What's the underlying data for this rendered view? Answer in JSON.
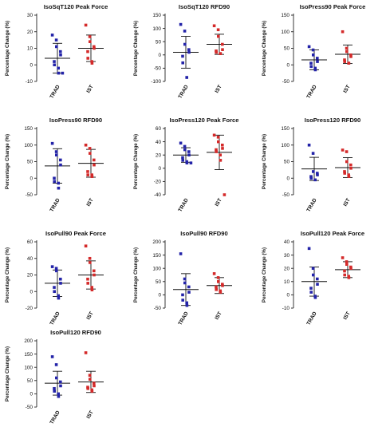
{
  "style": {
    "trad_color": "#2323a8",
    "ist_color": "#d42a2a",
    "axis_color": "#222222"
  },
  "chart_data": [
    {
      "type": "scatter",
      "title": "IsoSqT120 Peak Force",
      "ylabel": "Percentage Change (%)",
      "categories": [
        "TRAD",
        "IST"
      ],
      "ylim": [
        -10,
        30
      ],
      "yticks": [
        -10,
        0,
        10,
        20,
        30
      ],
      "series": [
        {
          "name": "TRAD",
          "values": [
            18,
            15,
            11,
            8,
            6,
            2,
            0,
            -2,
            -5,
            -5
          ],
          "mean": 4,
          "sd": 9
        },
        {
          "name": "IST",
          "values": [
            24,
            17,
            14,
            11,
            10,
            8,
            4,
            2,
            1
          ],
          "mean": 10,
          "sd": 8
        }
      ]
    },
    {
      "type": "scatter",
      "title": "IsoSqT120 RFD90",
      "ylabel": "Percentage Change (%)",
      "categories": [
        "TRAD",
        "IST"
      ],
      "ylim": [
        -100,
        150
      ],
      "yticks": [
        -100,
        -50,
        0,
        50,
        100,
        150
      ],
      "series": [
        {
          "name": "TRAD",
          "values": [
            115,
            90,
            40,
            20,
            10,
            -5,
            -30,
            -85
          ],
          "mean": 10,
          "sd": 60
        },
        {
          "name": "IST",
          "values": [
            110,
            95,
            70,
            40,
            20,
            15,
            10,
            5,
            5
          ],
          "mean": 40,
          "sd": 38
        }
      ]
    },
    {
      "type": "scatter",
      "title": "IsoPress90 Peak Force",
      "ylabel": "Percentage Change (%)",
      "categories": [
        "TRAD",
        "IST"
      ],
      "ylim": [
        -50,
        150
      ],
      "yticks": [
        -50,
        0,
        50,
        100,
        150
      ],
      "series": [
        {
          "name": "TRAD",
          "values": [
            55,
            45,
            30,
            20,
            10,
            5,
            -5,
            -10,
            -15
          ],
          "mean": 15,
          "sd": 30
        },
        {
          "name": "IST",
          "values": [
            100,
            50,
            40,
            30,
            25,
            15,
            10,
            5,
            5
          ],
          "mean": 32,
          "sd": 28
        }
      ]
    },
    {
      "type": "scatter",
      "title": "IsoPress90 RFD90",
      "ylabel": "Percentage Change (%)",
      "categories": [
        "TRAD",
        "IST"
      ],
      "ylim": [
        -50,
        150
      ],
      "yticks": [
        -50,
        0,
        50,
        100,
        150
      ],
      "series": [
        {
          "name": "TRAD",
          "values": [
            105,
            80,
            70,
            55,
            40,
            0,
            -10,
            -15,
            -30
          ],
          "mean": 37,
          "sd": 52
        },
        {
          "name": "IST",
          "values": [
            100,
            90,
            75,
            55,
            40,
            20,
            10,
            10,
            5
          ],
          "mean": 45,
          "sd": 42
        }
      ]
    },
    {
      "type": "scatter",
      "title": "IsoPress120 Peak Force",
      "ylabel": "Percentage Change (%)",
      "categories": [
        "TRAD",
        "IST"
      ],
      "ylim": [
        -40,
        60
      ],
      "yticks": [
        -40,
        -20,
        0,
        20,
        40,
        60
      ],
      "series": [
        {
          "name": "TRAD",
          "values": [
            38,
            33,
            28,
            25,
            20,
            16,
            12,
            10,
            8,
            8
          ],
          "mean": 20,
          "sd": 11
        },
        {
          "name": "IST",
          "values": [
            50,
            47,
            40,
            35,
            30,
            28,
            25,
            20,
            12,
            -40
          ],
          "mean": 24,
          "sd": 26
        }
      ]
    },
    {
      "type": "scatter",
      "title": "IsoPress120 RFD90",
      "ylabel": "Percentage Change (%)",
      "categories": [
        "TRAD",
        "IST"
      ],
      "ylim": [
        -50,
        150
      ],
      "yticks": [
        -50,
        0,
        50,
        100,
        150
      ],
      "series": [
        {
          "name": "TRAD",
          "values": [
            100,
            75,
            20,
            15,
            10,
            5,
            0,
            -5
          ],
          "mean": 28,
          "sd": 35
        },
        {
          "name": "IST",
          "values": [
            85,
            80,
            50,
            40,
            30,
            20,
            15,
            10,
            5
          ],
          "mean": 32,
          "sd": 30
        }
      ]
    },
    {
      "type": "scatter",
      "title": "IsoPull90 Peak Force",
      "ylabel": "Percentage Change (%)",
      "categories": [
        "TRAD",
        "IST"
      ],
      "ylim": [
        -20,
        60
      ],
      "yticks": [
        -20,
        0,
        20,
        40,
        60
      ],
      "series": [
        {
          "name": "TRAD",
          "values": [
            30,
            28,
            25,
            15,
            10,
            5,
            0,
            -5,
            -8
          ],
          "mean": 10,
          "sd": 16
        },
        {
          "name": "IST",
          "values": [
            55,
            40,
            35,
            25,
            20,
            15,
            10,
            5,
            2
          ],
          "mean": 20,
          "sd": 17
        }
      ]
    },
    {
      "type": "scatter",
      "title": "IsoPull90 RFD90",
      "ylabel": "Percentage Change (%)",
      "categories": [
        "TRAD",
        "IST"
      ],
      "ylim": [
        -50,
        200
      ],
      "yticks": [
        -50,
        0,
        50,
        100,
        150,
        200
      ],
      "series": [
        {
          "name": "TRAD",
          "values": [
            155,
            60,
            45,
            30,
            10,
            0,
            -20,
            -30,
            -40
          ],
          "mean": 20,
          "sd": 60
        },
        {
          "name": "IST",
          "values": [
            80,
            65,
            50,
            40,
            35,
            30,
            20,
            15,
            10
          ],
          "mean": 35,
          "sd": 30
        }
      ]
    },
    {
      "type": "scatter",
      "title": "IsoPull120 Peak Force",
      "ylabel": "Percentage Change (%)",
      "categories": [
        "TRAD",
        "IST"
      ],
      "ylim": [
        -10,
        40
      ],
      "yticks": [
        -10,
        0,
        10,
        20,
        30,
        40
      ],
      "series": [
        {
          "name": "TRAD",
          "values": [
            35,
            20,
            15,
            12,
            8,
            5,
            2,
            -1,
            -2
          ],
          "mean": 10,
          "sd": 11
        },
        {
          "name": "IST",
          "values": [
            28,
            25,
            23,
            21,
            20,
            18,
            15,
            14,
            13
          ],
          "mean": 19,
          "sd": 6
        }
      ]
    },
    {
      "type": "scatter",
      "title": "IsoPull120 RFD90",
      "ylabel": "Percentage Change (%)",
      "categories": [
        "TRAD",
        "IST"
      ],
      "ylim": [
        -50,
        200
      ],
      "yticks": [
        -50,
        0,
        50,
        100,
        150,
        200
      ],
      "series": [
        {
          "name": "TRAD",
          "values": [
            140,
            110,
            60,
            45,
            30,
            20,
            10,
            0,
            -10
          ],
          "mean": 40,
          "sd": 45
        },
        {
          "name": "IST",
          "values": [
            155,
            70,
            55,
            40,
            30,
            25,
            20,
            15,
            10
          ],
          "mean": 45,
          "sd": 40
        }
      ]
    }
  ]
}
